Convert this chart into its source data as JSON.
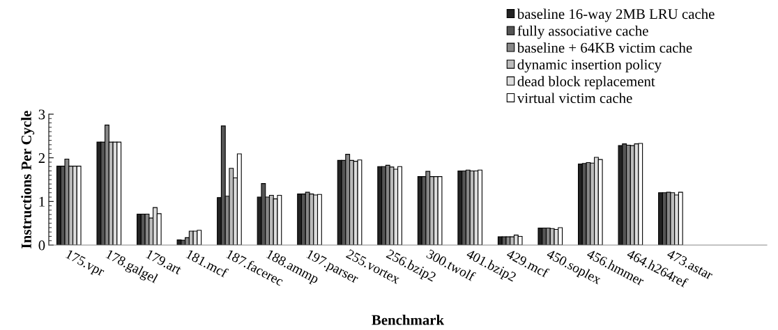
{
  "chart_data": {
    "type": "bar",
    "xlabel": "Benchmark",
    "ylabel": "Instructions Per Cycle",
    "categories": [
      "175.vpr",
      "178.galgel",
      "179.art",
      "181.mcf",
      "187.facerec",
      "188.ammp",
      "197.parser",
      "255.vortex",
      "256.bzip2",
      "300.twolf",
      "401.bzip2",
      "429.mcf",
      "450.soplex",
      "456.hmmer",
      "464.h264ref",
      "473.astar"
    ],
    "series": [
      {
        "name": "baseline 16-way 2MB LRU cache",
        "color": "#222222",
        "values": [
          1.81,
          2.36,
          0.71,
          0.12,
          1.09,
          1.1,
          1.17,
          1.94,
          1.8,
          1.57,
          1.7,
          0.19,
          0.39,
          1.86,
          2.28,
          1.2
        ]
      },
      {
        "name": "fully associative cache",
        "color": "#555555",
        "values": [
          1.81,
          2.36,
          0.71,
          0.11,
          2.73,
          1.41,
          1.17,
          1.94,
          1.8,
          1.57,
          1.7,
          0.19,
          0.39,
          1.87,
          2.32,
          1.2
        ]
      },
      {
        "name": "baseline + 64KB victim cache",
        "color": "#888888",
        "values": [
          1.97,
          2.75,
          0.71,
          0.17,
          1.12,
          1.1,
          1.21,
          2.08,
          1.83,
          1.69,
          1.72,
          0.19,
          0.39,
          1.89,
          2.29,
          1.21
        ]
      },
      {
        "name": "dynamic insertion policy",
        "color": "#bbbbbb",
        "values": [
          1.81,
          2.36,
          0.62,
          0.32,
          1.76,
          1.14,
          1.17,
          1.94,
          1.79,
          1.57,
          1.7,
          0.19,
          0.38,
          1.88,
          2.28,
          1.2
        ]
      },
      {
        "name": "dead block replacement",
        "color": "#dddddd",
        "values": [
          1.81,
          2.36,
          0.86,
          0.32,
          1.54,
          1.06,
          1.15,
          1.92,
          1.74,
          1.57,
          1.7,
          0.23,
          0.36,
          2.01,
          2.32,
          1.15
        ]
      },
      {
        "name": "virtual victim cache",
        "color": "#ffffff",
        "values": [
          1.81,
          2.36,
          0.72,
          0.34,
          2.09,
          1.14,
          1.16,
          1.95,
          1.8,
          1.57,
          1.72,
          0.2,
          0.4,
          1.96,
          2.33,
          1.21
        ]
      }
    ],
    "ylim": [
      0,
      3
    ],
    "yticks": [
      0,
      1,
      2,
      3
    ],
    "grid": false,
    "legend": "top right"
  }
}
